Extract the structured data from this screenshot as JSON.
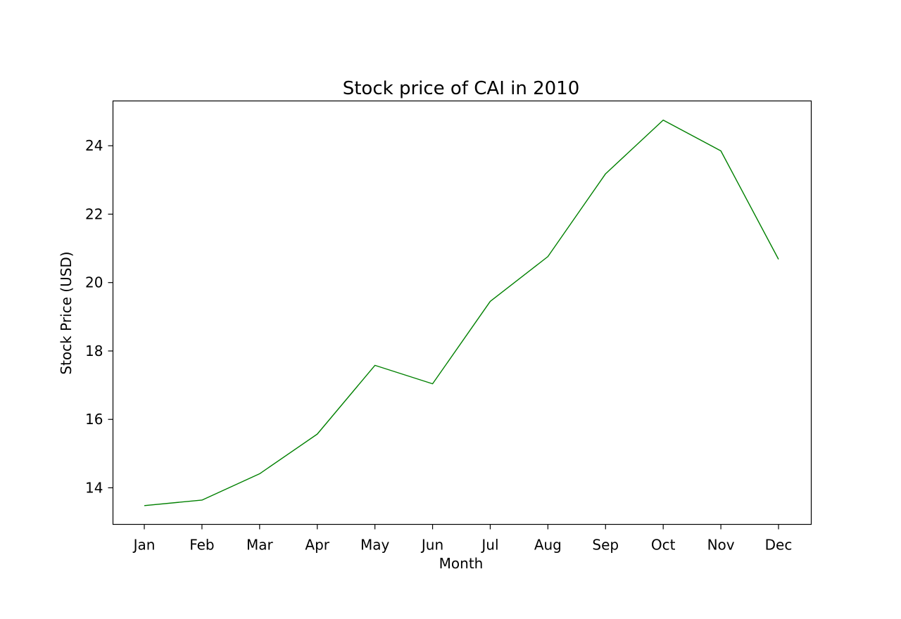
{
  "chart_data": {
    "type": "line",
    "title": "Stock price of CAI in 2010",
    "xlabel": "Month",
    "ylabel": "Stock Price (USD)",
    "categories": [
      "Jan",
      "Feb",
      "Mar",
      "Apr",
      "May",
      "Jun",
      "Jul",
      "Aug",
      "Sep",
      "Oct",
      "Nov",
      "Dec"
    ],
    "series": [
      {
        "values": [
          13.48,
          13.64,
          14.41,
          15.57,
          17.58,
          17.04,
          19.45,
          20.76,
          23.18,
          24.75,
          23.85,
          20.68
        ],
        "color": "#008000"
      }
    ],
    "ylim": [
      12.93,
      25.31
    ],
    "yticks": [
      14,
      16,
      18,
      20,
      22,
      24
    ],
    "grid": false,
    "legend": false
  }
}
